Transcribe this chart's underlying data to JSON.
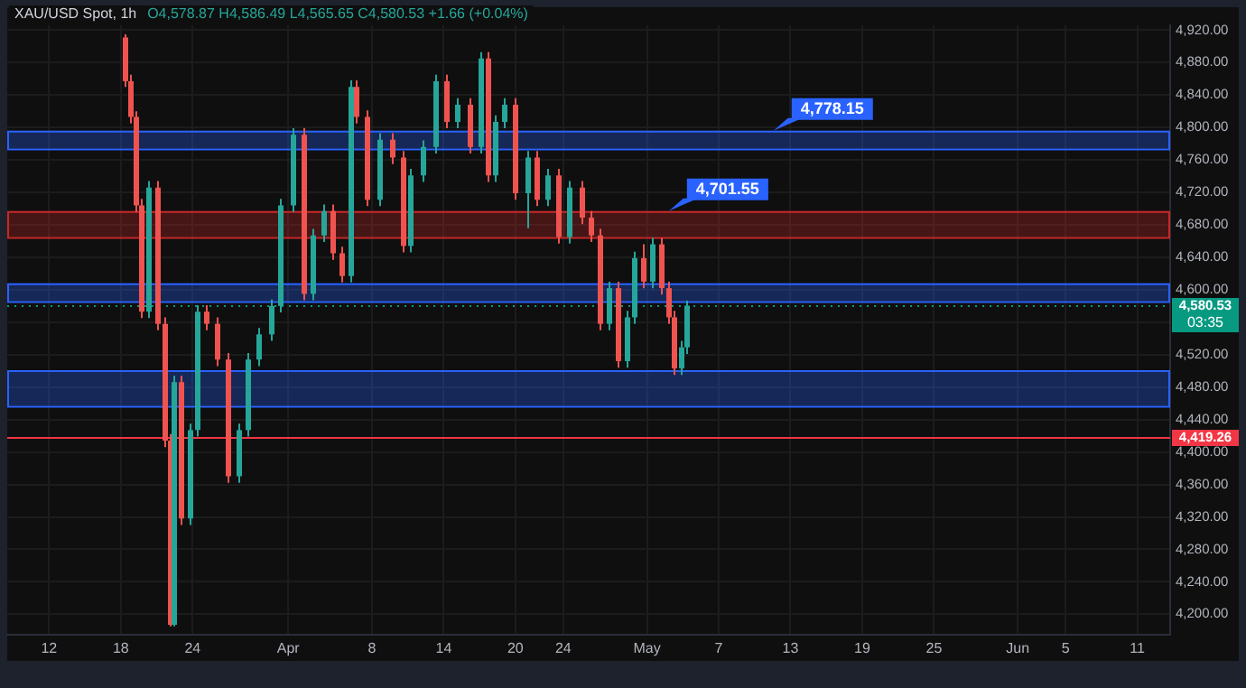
{
  "chart_data": {
    "type": "candlestick",
    "title": "XAU/USD Spot, 1h",
    "subtitle": "O4,578.87 H4,586.49 L4,565.65 C4,580.53 +1.66 (+0.04%)",
    "x": [
      "--03-18T06:00",
      "--03-18T17:00",
      "--03-19T04:00",
      "--03-19T15:00",
      "--03-20T05:00",
      "--03-20T23:00",
      "--03-21T14:00",
      "--03-22T01:00",
      "--03-22T10:00",
      "--03-22T23:00",
      "--03-23T17:00",
      "--03-24T07:00",
      "--03-25T01:00",
      "--03-25T23:00",
      "--03-26T21:00",
      "--03-27T20:00",
      "--03-28T14:00",
      "--03-29T12:00",
      "--03-30T12:00",
      "--03-31T06:00",
      "--04-01T09:00",
      "--04-02T08:00",
      "--04-03T02:00",
      "--04-04T00:00",
      "--04-04T18:00",
      "--04-05T12:00",
      "--04-06T03:00",
      "--04-06T17:00",
      "--04-07T15:00",
      "--04-08T16:00",
      "--04-09T16:00",
      "--04-10T12:00",
      "--04-11T06:00",
      "--04-12T07:00",
      "--04-13T08:00",
      "--04-14T04:00",
      "--04-15T04:00",
      "--04-16T05:00",
      "--04-17T03:00",
      "--04-17T17:00",
      "--04-18T08:00",
      "--04-19T02:00",
      "--04-20T00:00",
      "--04-20T23:00",
      "--04-21T19:00",
      "--04-22T17:00",
      "--04-23T15:00",
      "--04-24T12:00",
      "--04-25T12:00",
      "--04-26T08:00",
      "--04-27T00:00",
      "--04-27T18:00",
      "--04-28T14:00",
      "--04-29T06:00",
      "--04-29T23:00",
      "--04-30T17:00",
      "--05-01T11:00",
      "--05-02T05:00",
      "--05-02T19:00",
      "--05-03T06:00",
      "--05-03T19:00",
      "--05-04T08:00"
    ],
    "ohlc": [
      [
        4911,
        4915,
        4850,
        4857
      ],
      [
        4857,
        4865,
        4805,
        4813
      ],
      [
        4813,
        4820,
        4696,
        4704
      ],
      [
        4704,
        4712,
        4565,
        4573
      ],
      [
        4573,
        4734,
        4565,
        4726
      ],
      [
        4726,
        4734,
        4550,
        4558
      ],
      [
        4558,
        4566,
        4406,
        4414
      ],
      [
        4414,
        4422,
        4185,
        4187
      ],
      [
        4187,
        4494,
        4185,
        4486
      ],
      [
        4486,
        4494,
        4310,
        4318
      ],
      [
        4318,
        4435,
        4310,
        4427
      ],
      [
        4427,
        4581,
        4419,
        4573
      ],
      [
        4573,
        4581,
        4550,
        4558
      ],
      [
        4558,
        4566,
        4506,
        4514
      ],
      [
        4514,
        4522,
        4362,
        4370
      ],
      [
        4370,
        4435,
        4362,
        4427
      ],
      [
        4427,
        4522,
        4419,
        4514
      ],
      [
        4514,
        4553,
        4506,
        4545
      ],
      [
        4545,
        4588,
        4537,
        4580
      ],
      [
        4580,
        4712,
        4572,
        4704
      ],
      [
        4704,
        4799,
        4696,
        4791
      ],
      [
        4791,
        4799,
        4587,
        4595
      ],
      [
        4595,
        4675,
        4587,
        4667
      ],
      [
        4667,
        4705,
        4659,
        4697
      ],
      [
        4697,
        4705,
        4637,
        4645
      ],
      [
        4645,
        4653,
        4609,
        4617
      ],
      [
        4617,
        4858,
        4609,
        4850
      ],
      [
        4850,
        4858,
        4805,
        4813
      ],
      [
        4813,
        4821,
        4703,
        4711
      ],
      [
        4711,
        4793,
        4703,
        4785
      ],
      [
        4785,
        4793,
        4755,
        4763
      ],
      [
        4763,
        4771,
        4646,
        4654
      ],
      [
        4654,
        4749,
        4646,
        4741
      ],
      [
        4741,
        4784,
        4733,
        4776
      ],
      [
        4776,
        4865,
        4768,
        4857
      ],
      [
        4857,
        4865,
        4799,
        4807
      ],
      [
        4807,
        4836,
        4799,
        4828
      ],
      [
        4828,
        4836,
        4768,
        4776
      ],
      [
        4776,
        4893,
        4768,
        4885
      ],
      [
        4885,
        4893,
        4733,
        4741
      ],
      [
        4741,
        4815,
        4733,
        4807
      ],
      [
        4807,
        4836,
        4799,
        4828
      ],
      [
        4828,
        4836,
        4711,
        4719
      ],
      [
        4719,
        4771,
        4676,
        4763
      ],
      [
        4763,
        4771,
        4703,
        4711
      ],
      [
        4711,
        4749,
        4703,
        4741
      ],
      [
        4741,
        4749,
        4657,
        4665
      ],
      [
        4665,
        4734,
        4657,
        4726
      ],
      [
        4726,
        4734,
        4681,
        4689
      ],
      [
        4689,
        4697,
        4659,
        4667
      ],
      [
        4667,
        4675,
        4550,
        4558
      ],
      [
        4558,
        4610,
        4550,
        4602
      ],
      [
        4602,
        4610,
        4504,
        4512
      ],
      [
        4512,
        4574,
        4504,
        4566
      ],
      [
        4566,
        4647,
        4558,
        4639
      ],
      [
        4639,
        4656,
        4602,
        4610
      ],
      [
        4610,
        4664,
        4602,
        4656
      ],
      [
        4656,
        4664,
        4594,
        4602
      ],
      [
        4602,
        4610,
        4558,
        4566
      ],
      [
        4566,
        4574,
        4495,
        4503
      ],
      [
        4503,
        4537,
        4495,
        4529
      ],
      [
        4529,
        4586.49,
        4521,
        4580.53
      ]
    ],
    "colors": [
      "#ef5350",
      "#ef5350",
      "#ef5350",
      "#ef5350",
      "#26a69a",
      "#ef5350",
      "#ef5350",
      "#ef5350",
      "#26a69a",
      "#ef5350",
      "#26a69a",
      "#26a69a",
      "#ef5350",
      "#ef5350",
      "#ef5350",
      "#26a69a",
      "#26a69a",
      "#26a69a",
      "#26a69a",
      "#26a69a",
      "#26a69a",
      "#ef5350",
      "#26a69a",
      "#26a69a",
      "#ef5350",
      "#ef5350",
      "#26a69a",
      "#ef5350",
      "#ef5350",
      "#26a69a",
      "#ef5350",
      "#ef5350",
      "#26a69a",
      "#26a69a",
      "#26a69a",
      "#ef5350",
      "#26a69a",
      "#ef5350",
      "#26a69a",
      "#ef5350",
      "#26a69a",
      "#26a69a",
      "#ef5350",
      "#26a69a",
      "#ef5350",
      "#26a69a",
      "#ef5350",
      "#26a69a",
      "#ef5350",
      "#ef5350",
      "#ef5350",
      "#26a69a",
      "#ef5350",
      "#26a69a",
      "#26a69a",
      "#ef5350",
      "#26a69a",
      "#ef5350",
      "#ef5350",
      "#ef5350",
      "#26a69a",
      "#26a69a"
    ],
    "xlim": [
      "--03-08T12:00",
      "--06-13T18:00"
    ],
    "xticks": [
      {
        "value": "--03-12",
        "label": "12"
      },
      {
        "value": "--03-18",
        "label": "18"
      },
      {
        "value": "--03-24",
        "label": "24"
      },
      {
        "value": "--04-01",
        "label": "Apr"
      },
      {
        "value": "--04-08",
        "label": "8"
      },
      {
        "value": "--04-14",
        "label": "14"
      },
      {
        "value": "--04-20",
        "label": "20"
      },
      {
        "value": "--04-24",
        "label": "24"
      },
      {
        "value": "--05-01",
        "label": "May"
      },
      {
        "value": "--05-07",
        "label": "7"
      },
      {
        "value": "--05-13",
        "label": "13"
      },
      {
        "value": "--05-19",
        "label": "19"
      },
      {
        "value": "--05-25",
        "label": "25"
      },
      {
        "value": "--06-01",
        "label": "Jun"
      },
      {
        "value": "--06-05",
        "label": "5"
      },
      {
        "value": "--06-11",
        "label": "11"
      }
    ],
    "ylim": [
      4175,
      4926
    ],
    "yticks": [
      {
        "value": 4200,
        "label": "4,200.00"
      },
      {
        "value": 4240,
        "label": "4,240.00"
      },
      {
        "value": 4280,
        "label": "4,280.00"
      },
      {
        "value": 4320,
        "label": "4,320.00"
      },
      {
        "value": 4360,
        "label": "4,360.00"
      },
      {
        "value": 4400,
        "label": "4,400.00"
      },
      {
        "value": 4440,
        "label": "4,440.00"
      },
      {
        "value": 4480,
        "label": "4,480.00"
      },
      {
        "value": 4520,
        "label": "4,520.00"
      },
      {
        "value": 4560,
        "label": null
      },
      {
        "value": 4600,
        "label": "4,600.00"
      },
      {
        "value": 4640,
        "label": "4,640.00"
      },
      {
        "value": 4680,
        "label": "4,680.00"
      },
      {
        "value": 4720,
        "label": "4,720.00"
      },
      {
        "value": 4760,
        "label": "4,760.00"
      },
      {
        "value": 4800,
        "label": "4,800.00"
      },
      {
        "value": 4840,
        "label": "4,840.00"
      },
      {
        "value": 4880,
        "label": "4,880.00"
      },
      {
        "value": 4920,
        "label": "4,920.00"
      }
    ],
    "grid": true,
    "ref_lines": [
      {
        "axis": "y",
        "value": 4419.26,
        "label": "4,419.26",
        "color": "#f23645"
      },
      {
        "axis": "y",
        "value": 4580.53,
        "label": "4,580.53",
        "color": "#089981",
        "line_style": "dotted"
      }
    ],
    "bands": [
      {
        "axis": "y",
        "from": 4774,
        "to": 4796,
        "color": "#2962ff"
      },
      {
        "axis": "y",
        "from": 4665,
        "to": 4697,
        "color": "#c62828"
      },
      {
        "axis": "y",
        "from": 4586,
        "to": 4608,
        "color": "#2962ff"
      },
      {
        "axis": "y",
        "from": 4457,
        "to": 4501,
        "color": "#2962ff"
      }
    ],
    "annotations": [
      "03:35",
      "4,778.15",
      "4,701.55"
    ]
  }
}
